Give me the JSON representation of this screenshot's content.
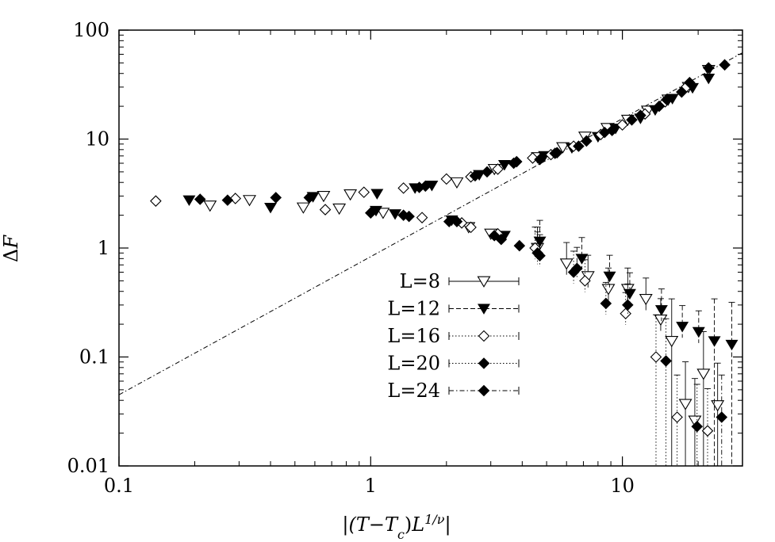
{
  "chart_data": {
    "type": "scatter",
    "xscale": "log",
    "yscale": "log",
    "xlim": [
      0.1,
      30
    ],
    "ylim": [
      0.01,
      100
    ],
    "xlabel": "|(T−Tc)L^(1/ν)|",
    "ylabel": "ΔF",
    "xticks": [
      {
        "value": 0.1,
        "label": "0.1"
      },
      {
        "value": 1,
        "label": "1"
      },
      {
        "value": 10,
        "label": "10"
      }
    ],
    "yticks": [
      {
        "value": 0.01,
        "label": "0.01"
      },
      {
        "value": 0.1,
        "label": "0.1"
      },
      {
        "value": 1,
        "label": "1"
      },
      {
        "value": 10,
        "label": "10"
      },
      {
        "value": 100,
        "label": "100"
      }
    ],
    "fit_line": {
      "style": "dash-dot",
      "x": [
        0.1,
        30
      ],
      "y": [
        0.045,
        62
      ]
    },
    "series": [
      {
        "name": "L=8",
        "marker": "triangle-down-open",
        "line_style": "solid",
        "upper": [
          [
            0.23,
            2.45
          ],
          [
            0.33,
            2.75
          ],
          [
            0.54,
            2.35
          ],
          [
            0.65,
            3.0
          ],
          [
            0.75,
            2.3
          ],
          [
            0.83,
            3.1
          ],
          [
            1.12,
            2.1
          ],
          [
            2.2,
            4.0
          ],
          [
            3.1,
            5.3
          ],
          [
            4.6,
            6.8
          ],
          [
            5.8,
            8.4
          ],
          [
            7.1,
            10.5
          ],
          [
            8.7,
            12.6
          ],
          [
            10.5,
            15.0
          ],
          [
            12.6,
            18.2
          ],
          [
            15.2,
            23.0
          ],
          [
            18.3,
            30.0
          ],
          [
            22.0,
            43.0
          ]
        ],
        "lower": [
          [
            2.45,
            1.55
          ],
          [
            3.0,
            1.35
          ],
          [
            4.6,
            1.0
          ],
          [
            6.0,
            0.72
          ],
          [
            7.3,
            0.55
          ],
          [
            8.8,
            0.42
          ],
          [
            10.5,
            0.42
          ],
          [
            12.4,
            0.34
          ],
          [
            14.2,
            0.22
          ],
          [
            15.7,
            0.14
          ],
          [
            17.8,
            0.037
          ],
          [
            19.4,
            0.026
          ],
          [
            21.0,
            0.07
          ],
          [
            23.9,
            0.036
          ]
        ]
      },
      {
        "name": "L=12",
        "marker": "triangle-down-filled",
        "line_style": "dashed",
        "upper": [
          [
            0.19,
            2.75
          ],
          [
            0.4,
            2.35
          ],
          [
            0.59,
            2.95
          ],
          [
            1.06,
            3.15
          ],
          [
            1.5,
            3.55
          ],
          [
            1.75,
            3.75
          ],
          [
            2.7,
            4.7
          ],
          [
            3.4,
            5.8
          ],
          [
            4.9,
            7.0
          ],
          [
            6.3,
            8.3
          ],
          [
            8.0,
            10.5
          ],
          [
            9.4,
            12.5
          ],
          [
            11.8,
            15.5
          ],
          [
            13.5,
            18.5
          ],
          [
            15.8,
            23.5
          ],
          [
            19.0,
            29.5
          ],
          [
            22.0,
            36.0
          ]
        ],
        "lower": [
          [
            1.05,
            2.2
          ],
          [
            1.25,
            2.05
          ],
          [
            2.1,
            1.8
          ],
          [
            3.4,
            1.3
          ],
          [
            4.7,
            1.15
          ],
          [
            6.9,
            0.8
          ],
          [
            8.9,
            0.55
          ],
          [
            10.7,
            0.38
          ],
          [
            14.3,
            0.27
          ],
          [
            17.3,
            0.19
          ],
          [
            20.1,
            0.17
          ],
          [
            23.2,
            0.14
          ],
          [
            27.2,
            0.13
          ]
        ]
      },
      {
        "name": "L=16",
        "marker": "diamond-open",
        "line_style": "dotted",
        "upper": [
          [
            0.14,
            2.7
          ],
          [
            0.29,
            2.85
          ],
          [
            0.66,
            2.25
          ],
          [
            0.94,
            3.25
          ],
          [
            1.35,
            3.55
          ],
          [
            2.0,
            4.3
          ],
          [
            2.5,
            4.5
          ],
          [
            3.2,
            5.3
          ],
          [
            4.4,
            6.7
          ],
          [
            5.2,
            7.2
          ],
          [
            6.4,
            8.6
          ],
          [
            8.2,
            11.0
          ],
          [
            10.0,
            13.5
          ],
          [
            12.3,
            17.0
          ],
          [
            14.8,
            22.0
          ],
          [
            17.8,
            29.5
          ]
        ],
        "lower": [
          [
            1.6,
            1.9
          ],
          [
            2.3,
            1.7
          ],
          [
            2.5,
            1.55
          ],
          [
            3.2,
            1.35
          ],
          [
            4.5,
            1.0
          ],
          [
            7.1,
            0.5
          ],
          [
            10.3,
            0.25
          ],
          [
            13.6,
            0.1
          ],
          [
            16.5,
            0.028
          ],
          [
            21.8,
            0.021
          ]
        ]
      },
      {
        "name": "L=20",
        "marker": "diamond-filled",
        "line_style": "dotted",
        "upper": [
          [
            0.21,
            2.8
          ],
          [
            0.42,
            2.9
          ],
          [
            1.56,
            3.6
          ],
          [
            2.9,
            5.0
          ],
          [
            3.7,
            6.0
          ],
          [
            5.4,
            7.4
          ],
          [
            6.7,
            8.6
          ],
          [
            8.5,
            11.5
          ],
          [
            10.9,
            15.0
          ],
          [
            14.0,
            20.0
          ],
          [
            17.2,
            27.0
          ]
        ],
        "lower": [
          [
            1.0,
            2.1
          ],
          [
            1.35,
            2.0
          ],
          [
            2.2,
            1.75
          ],
          [
            3.1,
            1.3
          ],
          [
            3.9,
            1.05
          ],
          [
            4.6,
            0.9
          ],
          [
            6.4,
            0.6
          ],
          [
            8.6,
            0.31
          ],
          [
            14.9,
            0.092
          ],
          [
            19.8,
            0.023
          ]
        ]
      },
      {
        "name": "L=24",
        "marker": "diamond-filled",
        "line_style": "dash-dot",
        "upper": [
          [
            0.27,
            2.75
          ],
          [
            0.57,
            2.9
          ],
          [
            1.65,
            3.7
          ],
          [
            2.6,
            4.6
          ],
          [
            3.8,
            6.2
          ],
          [
            4.7,
            6.5
          ],
          [
            5.5,
            7.5
          ],
          [
            7.2,
            9.6
          ],
          [
            9.1,
            12.0
          ],
          [
            11.8,
            16.5
          ],
          [
            15.0,
            23.0
          ],
          [
            18.5,
            33.0
          ],
          [
            22.0,
            45.0
          ],
          [
            25.5,
            48.0
          ]
        ],
        "lower": [
          [
            1.42,
            1.95
          ],
          [
            2.05,
            1.75
          ],
          [
            3.3,
            1.2
          ],
          [
            4.7,
            0.85
          ],
          [
            6.6,
            0.65
          ],
          [
            10.5,
            0.3
          ],
          [
            24.8,
            0.028
          ]
        ]
      }
    ]
  }
}
